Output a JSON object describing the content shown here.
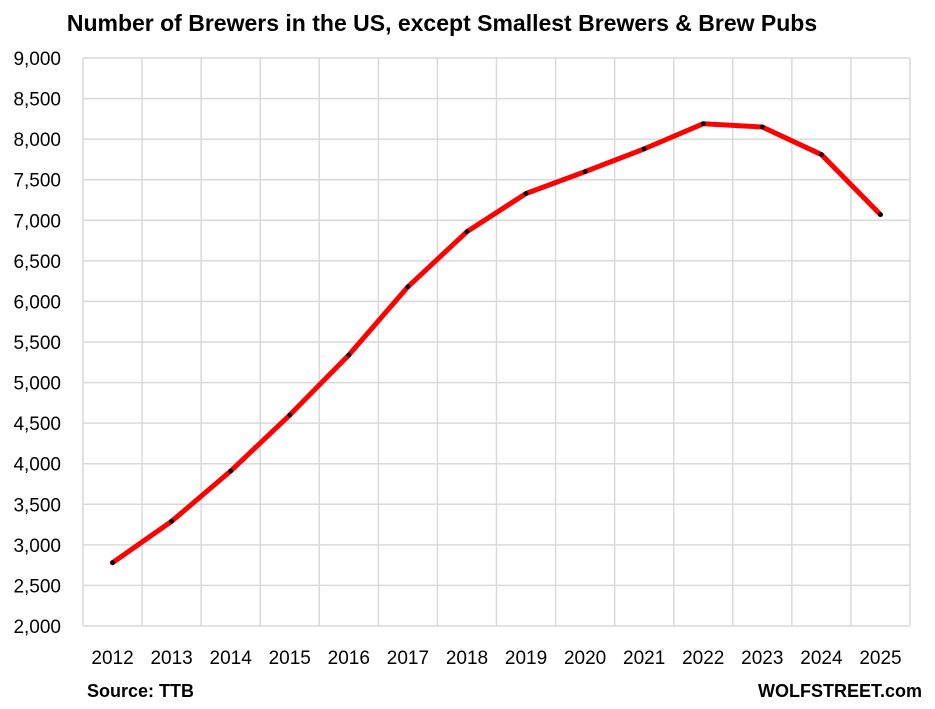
{
  "chart_data": {
    "type": "line",
    "title": "Number of Brewers in the US, except Smallest Brewers & Brew Pubs",
    "xlabel": "",
    "ylabel": "",
    "ylim": [
      2000,
      9000
    ],
    "grid": true,
    "legend": "none",
    "categories": [
      "2012",
      "2013",
      "2014",
      "2015",
      "2016",
      "2017",
      "2018",
      "2019",
      "2020",
      "2021",
      "2022",
      "2023",
      "2024",
      "2025"
    ],
    "y_ticks": [
      2000,
      2500,
      3000,
      3500,
      4000,
      4500,
      5000,
      5500,
      6000,
      6500,
      7000,
      7500,
      8000,
      8500,
      9000
    ],
    "y_tick_labels": [
      "2,000",
      "2,500",
      "3,000",
      "3,500",
      "4,000",
      "4,500",
      "5,000",
      "5,500",
      "6,000",
      "6,500",
      "7,000",
      "7,500",
      "8,000",
      "8,500",
      "9,000"
    ],
    "series": [
      {
        "name": "Brewers",
        "values": [
          2780,
          3290,
          3910,
          4600,
          5340,
          6180,
          6860,
          7330,
          7600,
          7880,
          8190,
          8150,
          7810,
          7070
        ],
        "color": "#ff0000",
        "marker_color": "#000000"
      }
    ],
    "source_note": "Source: TTB",
    "watermark": "WOLFSTREET.com"
  }
}
